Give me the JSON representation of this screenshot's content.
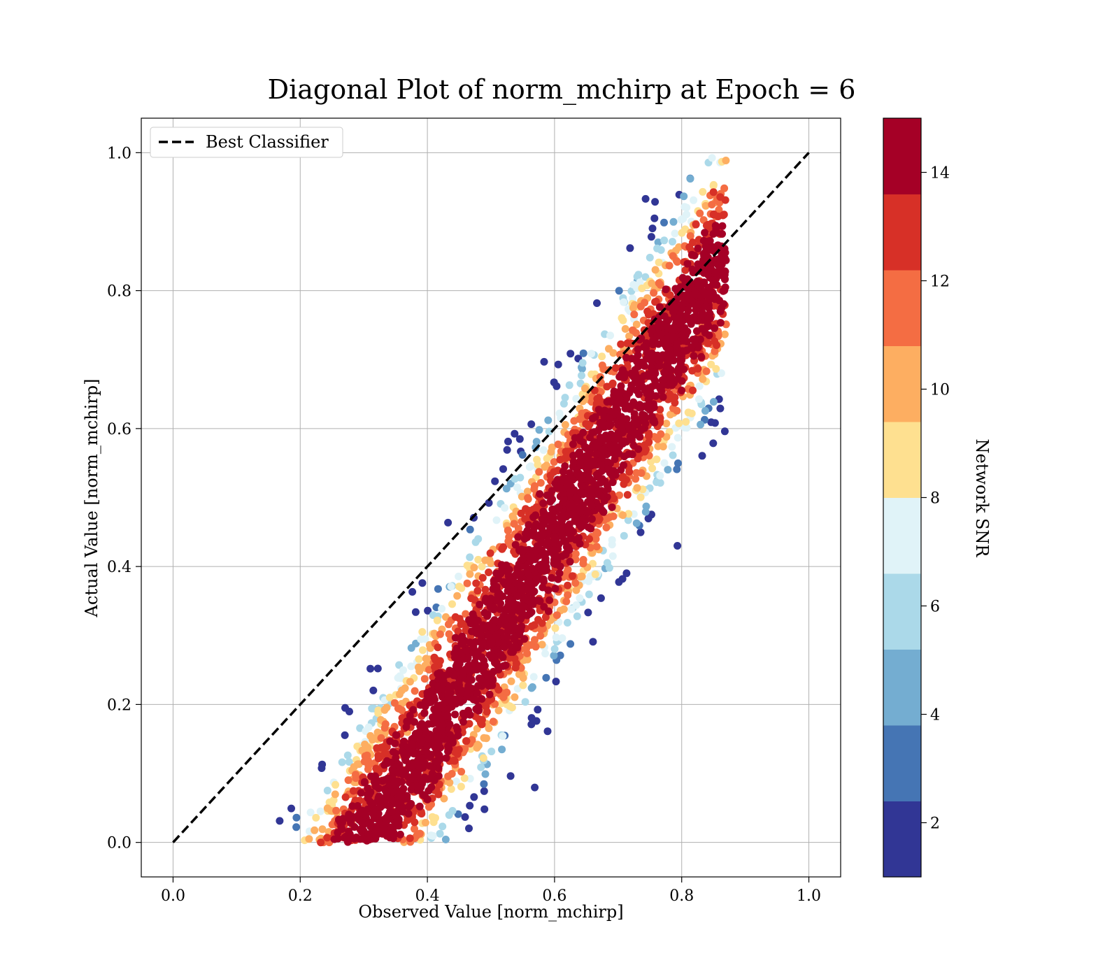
{
  "chart_data": {
    "type": "scatter",
    "title": "Diagonal Plot of norm_mchirp at Epoch = 6",
    "xlabel": "Observed Value [norm_mchirp]",
    "ylabel": "Actual Value [norm_mchirp]",
    "xlim": [
      -0.05,
      1.05
    ],
    "ylim": [
      -0.05,
      1.05
    ],
    "xticks": [
      0.0,
      0.2,
      0.4,
      0.6,
      0.8,
      1.0
    ],
    "yticks": [
      0.0,
      0.2,
      0.4,
      0.6,
      0.8,
      1.0
    ],
    "xtick_labels": [
      "0.0",
      "0.2",
      "0.4",
      "0.6",
      "0.8",
      "1.0"
    ],
    "ytick_labels": [
      "0.0",
      "0.2",
      "0.4",
      "0.6",
      "0.8",
      "1.0"
    ],
    "grid": true,
    "legend": {
      "placement": "top-left",
      "entries": [
        "Best Classifier"
      ]
    },
    "reference_line": {
      "name": "Best Classifier",
      "x": [
        0.0,
        1.0
      ],
      "y": [
        0.0,
        1.0
      ],
      "style": "dashed",
      "color": "#000000"
    },
    "colorbar": {
      "label": "Network SNR",
      "range": [
        1,
        15
      ],
      "ticks": [
        2,
        4,
        6,
        8,
        10,
        12,
        14
      ],
      "tick_labels": [
        "2",
        "4",
        "6",
        "8",
        "10",
        "12",
        "14"
      ],
      "colors": [
        "#313695",
        "#4575b4",
        "#74add1",
        "#abd9e9",
        "#e0f3f8",
        "#fee090",
        "#fdae61",
        "#f46d43",
        "#d73027",
        "#a50026"
      ]
    },
    "scatter_description": {
      "center_line_slope": 1.5,
      "center_line_intercept": -0.45,
      "x_extent": [
        0.15,
        0.87
      ],
      "y_extent": [
        0.0,
        1.0
      ],
      "high_snr_near_center": true
    }
  }
}
